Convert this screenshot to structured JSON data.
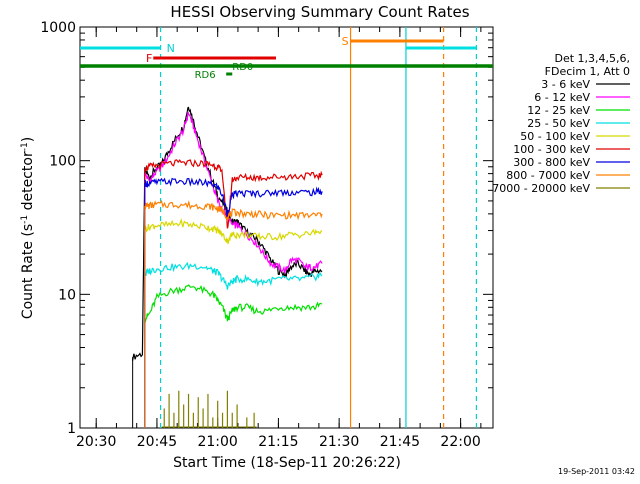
{
  "chart_data": {
    "type": "line",
    "title": "HESSI Observing Summary Count Rates",
    "xlabel": "Start Time (18-Sep-11 20:26:22)",
    "ylabel_main": "Count Rate (s",
    "ylabel_sup1": "-1",
    "ylabel_mid": " detector",
    "ylabel_sup2": "-1",
    "ylabel_end": ")",
    "ylabel": "Count Rate (s-1 detector-1)",
    "yscale": "log",
    "ylim": [
      1,
      1000
    ],
    "xlim_minutes": [
      20.4333,
      22.1333
    ],
    "x_tick_labels": [
      "20:30",
      "20:45",
      "21:00",
      "21:15",
      "21:30",
      "21:45",
      "22:00"
    ],
    "x_tick_values": [
      20.5,
      20.75,
      21.0,
      21.25,
      21.5,
      21.75,
      22.0
    ],
    "y_tick_labels": [
      "1",
      "10",
      "100",
      "1000"
    ],
    "y_tick_values": [
      1,
      10,
      100,
      1000
    ],
    "legend": {
      "header1": "Det 1,3,4,5,6,",
      "header2": "FDecim 1, Att 0",
      "entries": [
        {
          "label": "3 - 6 keV",
          "color": "#000000"
        },
        {
          "label": "6 - 12 keV",
          "color": "#ff00ff"
        },
        {
          "label": "12 - 25 keV",
          "color": "#00e000"
        },
        {
          "label": "25 - 50 keV",
          "color": "#00e0e0"
        },
        {
          "label": "50 - 100 keV",
          "color": "#d8d800"
        },
        {
          "label": "100 - 300 keV",
          "color": "#e00000"
        },
        {
          "label": "300 - 800 keV",
          "color": "#0000e0"
        },
        {
          "label": "800 - 7000 keV",
          "color": "#ff8000"
        },
        {
          "label": "7000 - 20000 keV",
          "color": "#808000"
        }
      ]
    },
    "flag_labels": {
      "N": "N",
      "F": "F",
      "S": "S",
      "RD0": "RD0",
      "RD6": "RD6"
    },
    "series": [
      {
        "name": "3 - 6 keV",
        "color": "#000000",
        "points": [
          [
            20.65,
            3.4
          ],
          [
            20.69,
            3.6
          ],
          [
            20.7,
            85
          ],
          [
            20.72,
            75
          ],
          [
            20.74,
            85
          ],
          [
            20.77,
            95
          ],
          [
            20.8,
            120
          ],
          [
            20.83,
            150
          ],
          [
            20.86,
            180
          ],
          [
            20.88,
            260
          ],
          [
            20.9,
            200
          ],
          [
            20.92,
            150
          ],
          [
            20.95,
            100
          ],
          [
            20.98,
            70
          ],
          [
            21.0,
            55
          ],
          [
            21.03,
            45
          ],
          [
            21.06,
            35
          ],
          [
            21.08,
            35
          ],
          [
            21.1,
            32
          ],
          [
            21.13,
            28
          ],
          [
            21.16,
            26
          ],
          [
            21.19,
            22
          ],
          [
            21.22,
            18
          ],
          [
            21.25,
            15
          ],
          [
            21.28,
            14
          ],
          [
            21.3,
            16
          ],
          [
            21.33,
            17
          ],
          [
            21.36,
            15
          ],
          [
            21.38,
            14
          ],
          [
            21.4,
            15
          ],
          [
            21.43,
            15
          ]
        ]
      },
      {
        "name": "6 - 12 keV",
        "color": "#ff00ff",
        "points": [
          [
            20.7,
            80
          ],
          [
            20.72,
            70
          ],
          [
            20.74,
            80
          ],
          [
            20.77,
            90
          ],
          [
            20.8,
            110
          ],
          [
            20.83,
            140
          ],
          [
            20.86,
            170
          ],
          [
            20.88,
            230
          ],
          [
            20.9,
            180
          ],
          [
            20.92,
            140
          ],
          [
            20.95,
            95
          ],
          [
            20.98,
            65
          ],
          [
            21.0,
            50
          ],
          [
            21.03,
            40
          ],
          [
            21.06,
            33
          ],
          [
            21.08,
            33
          ],
          [
            21.1,
            30
          ],
          [
            21.13,
            27
          ],
          [
            21.16,
            24
          ],
          [
            21.19,
            20
          ],
          [
            21.22,
            17
          ],
          [
            21.25,
            16
          ],
          [
            21.28,
            15
          ],
          [
            21.3,
            18
          ],
          [
            21.33,
            18
          ],
          [
            21.36,
            16
          ],
          [
            21.38,
            16
          ],
          [
            21.4,
            16
          ],
          [
            21.43,
            17
          ]
        ]
      },
      {
        "name": "12 - 25 keV",
        "color": "#00e000",
        "points": [
          [
            20.7,
            6.5
          ],
          [
            20.72,
            7.2
          ],
          [
            20.75,
            9.5
          ],
          [
            20.8,
            10.5
          ],
          [
            20.85,
            11
          ],
          [
            20.9,
            11.5
          ],
          [
            20.95,
            10.5
          ],
          [
            20.98,
            10
          ],
          [
            21.0,
            9
          ],
          [
            21.02,
            8
          ],
          [
            21.04,
            6.5
          ],
          [
            21.06,
            7.5
          ],
          [
            21.08,
            8
          ],
          [
            21.12,
            8
          ],
          [
            21.16,
            7.5
          ],
          [
            21.2,
            7.5
          ],
          [
            21.25,
            8
          ],
          [
            21.3,
            8
          ],
          [
            21.35,
            8
          ],
          [
            21.4,
            8
          ],
          [
            21.43,
            8.5
          ]
        ]
      },
      {
        "name": "25 - 50 keV",
        "color": "#00e0e0",
        "points": [
          [
            20.7,
            14
          ],
          [
            20.72,
            15
          ],
          [
            20.75,
            15.5
          ],
          [
            20.8,
            16
          ],
          [
            20.85,
            16
          ],
          [
            20.9,
            16.5
          ],
          [
            20.95,
            16
          ],
          [
            20.98,
            15
          ],
          [
            21.0,
            14.5
          ],
          [
            21.02,
            13
          ],
          [
            21.04,
            11.5
          ],
          [
            21.06,
            12.5
          ],
          [
            21.08,
            13
          ],
          [
            21.12,
            13
          ],
          [
            21.16,
            12.5
          ],
          [
            21.2,
            12.5
          ],
          [
            21.25,
            13
          ],
          [
            21.3,
            13
          ],
          [
            21.35,
            13
          ],
          [
            21.4,
            13.5
          ],
          [
            21.43,
            14
          ]
        ]
      },
      {
        "name": "50 - 100 keV",
        "color": "#d8d800",
        "points": [
          [
            20.7,
            31
          ],
          [
            20.72,
            32
          ],
          [
            20.75,
            33
          ],
          [
            20.8,
            33
          ],
          [
            20.85,
            34
          ],
          [
            20.9,
            33
          ],
          [
            20.95,
            32
          ],
          [
            20.98,
            31
          ],
          [
            21.0,
            30
          ],
          [
            21.02,
            28
          ],
          [
            21.04,
            25
          ],
          [
            21.06,
            28
          ],
          [
            21.08,
            28
          ],
          [
            21.12,
            28
          ],
          [
            21.16,
            27
          ],
          [
            21.2,
            27
          ],
          [
            21.25,
            27
          ],
          [
            21.3,
            28
          ],
          [
            21.35,
            28
          ],
          [
            21.4,
            29
          ],
          [
            21.43,
            30
          ]
        ]
      },
      {
        "name": "100 - 300 keV",
        "color": "#e00000",
        "points": [
          [
            20.7,
            88
          ],
          [
            20.72,
            90
          ],
          [
            20.75,
            92
          ],
          [
            20.8,
            95
          ],
          [
            20.85,
            96
          ],
          [
            20.9,
            96
          ],
          [
            20.95,
            95
          ],
          [
            20.98,
            93
          ],
          [
            21.0,
            90
          ],
          [
            21.02,
            80
          ],
          [
            21.04,
            30
          ],
          [
            21.06,
            72
          ],
          [
            21.08,
            75
          ],
          [
            21.12,
            75
          ],
          [
            21.16,
            75
          ],
          [
            21.2,
            75
          ],
          [
            21.25,
            76
          ],
          [
            21.3,
            76
          ],
          [
            21.35,
            77
          ],
          [
            21.4,
            77
          ],
          [
            21.43,
            78
          ]
        ]
      },
      {
        "name": "300 - 800 keV",
        "color": "#0000e0",
        "points": [
          [
            20.7,
            68
          ],
          [
            20.72,
            68
          ],
          [
            20.75,
            69
          ],
          [
            20.8,
            70
          ],
          [
            20.85,
            70
          ],
          [
            20.9,
            69
          ],
          [
            20.95,
            68
          ],
          [
            20.98,
            66
          ],
          [
            21.0,
            64
          ],
          [
            21.02,
            55
          ],
          [
            21.04,
            40
          ],
          [
            21.06,
            55
          ],
          [
            21.08,
            57
          ],
          [
            21.12,
            57
          ],
          [
            21.16,
            57
          ],
          [
            21.2,
            57
          ],
          [
            21.25,
            58
          ],
          [
            21.3,
            58
          ],
          [
            21.35,
            58
          ],
          [
            21.4,
            58
          ],
          [
            21.43,
            59
          ]
        ]
      },
      {
        "name": "800 - 7000 keV",
        "color": "#ff8000",
        "points": [
          [
            20.7,
            46
          ],
          [
            20.72,
            46
          ],
          [
            20.75,
            47
          ],
          [
            20.8,
            47
          ],
          [
            20.85,
            47
          ],
          [
            20.9,
            46
          ],
          [
            20.95,
            46
          ],
          [
            20.98,
            45
          ],
          [
            21.0,
            44
          ],
          [
            21.02,
            42
          ],
          [
            21.04,
            38
          ],
          [
            21.06,
            41
          ],
          [
            21.08,
            41
          ],
          [
            21.12,
            40
          ],
          [
            21.16,
            40
          ],
          [
            21.2,
            39
          ],
          [
            21.25,
            39
          ],
          [
            21.3,
            39
          ],
          [
            21.35,
            39
          ],
          [
            21.4,
            39
          ],
          [
            21.43,
            40
          ]
        ]
      },
      {
        "name": "7000 - 20000 keV",
        "color": "#808000",
        "points": [
          [
            20.78,
            1.4
          ],
          [
            20.8,
            1.8
          ],
          [
            20.82,
            1.3
          ],
          [
            20.84,
            1.9
          ],
          [
            20.86,
            1.5
          ],
          [
            20.88,
            1.8
          ],
          [
            20.9,
            1.3
          ],
          [
            20.92,
            1.7
          ],
          [
            20.94,
            1.4
          ],
          [
            20.96,
            1.8
          ],
          [
            20.98,
            1.2
          ],
          [
            21.0,
            1.6
          ],
          [
            21.02,
            1.3
          ],
          [
            21.04,
            1.9
          ],
          [
            21.06,
            1.3
          ],
          [
            21.08,
            1.5
          ],
          [
            21.12,
            1.2
          ],
          [
            21.15,
            1.3
          ]
        ]
      }
    ]
  },
  "footer": {
    "timestamp": "19-Sep-2011 03:42"
  }
}
